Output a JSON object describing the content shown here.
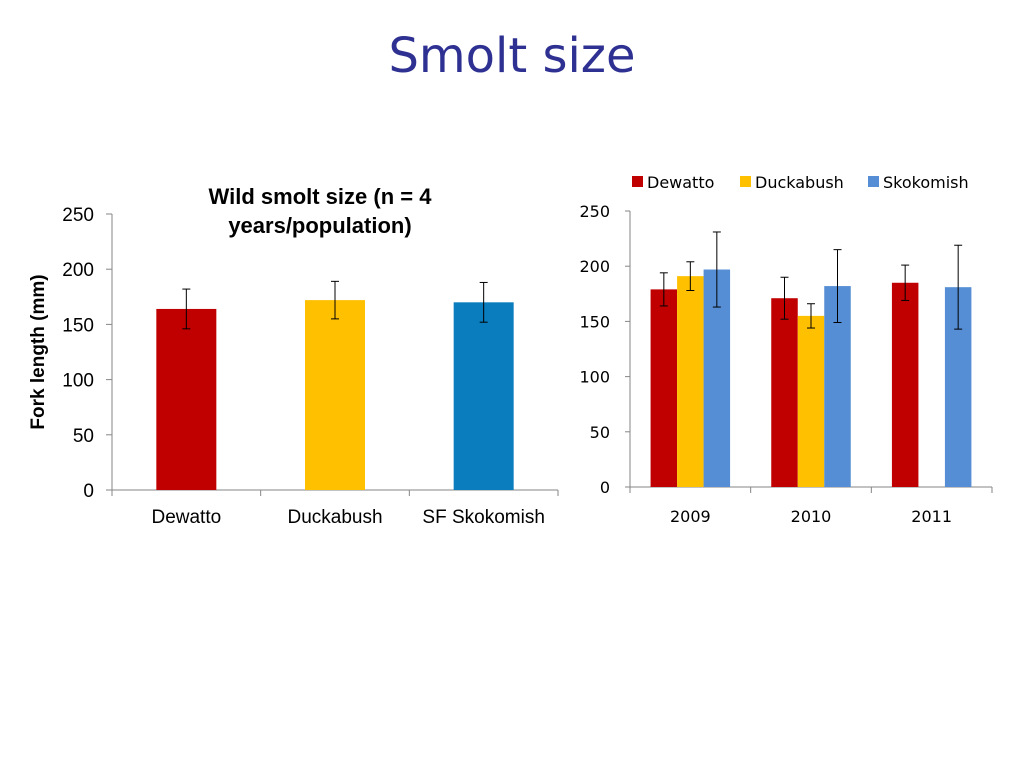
{
  "slide": {
    "title": "Smolt size"
  },
  "chart_data": [
    {
      "type": "bar",
      "title_lines": [
        "Wild smolt size (n = 4",
        "years/population)"
      ],
      "xlabel": "",
      "ylabel": "Fork length (mm)",
      "ylim": [
        0,
        250
      ],
      "yticks": [
        0,
        50,
        100,
        150,
        200,
        250
      ],
      "categories": [
        "Dewatto",
        "Duckabush",
        "SF Skokomish"
      ],
      "values": [
        164,
        172,
        170
      ],
      "errors": [
        18,
        17,
        18
      ],
      "colors": [
        "#c00000",
        "#ffc000",
        "#0a7dbf"
      ],
      "grid": false,
      "legend": "none"
    },
    {
      "type": "bar",
      "xlabel": "",
      "ylabel": "",
      "ylim": [
        0,
        250
      ],
      "yticks": [
        0,
        50,
        100,
        150,
        200,
        250
      ],
      "categories": [
        "2009",
        "2010",
        "2011"
      ],
      "series": [
        {
          "name": "Dewatto",
          "color": "#c00000",
          "values": [
            179,
            171,
            185
          ],
          "errors": [
            15,
            19,
            16
          ]
        },
        {
          "name": "Duckabush",
          "color": "#ffc000",
          "values": [
            191,
            155,
            null
          ],
          "errors": [
            13,
            11,
            null
          ]
        },
        {
          "name": "Skokomish",
          "color": "#558ed5",
          "values": [
            197,
            182,
            181
          ],
          "errors": [
            34,
            33,
            38
          ]
        }
      ],
      "grid": false,
      "legend": "top"
    }
  ]
}
